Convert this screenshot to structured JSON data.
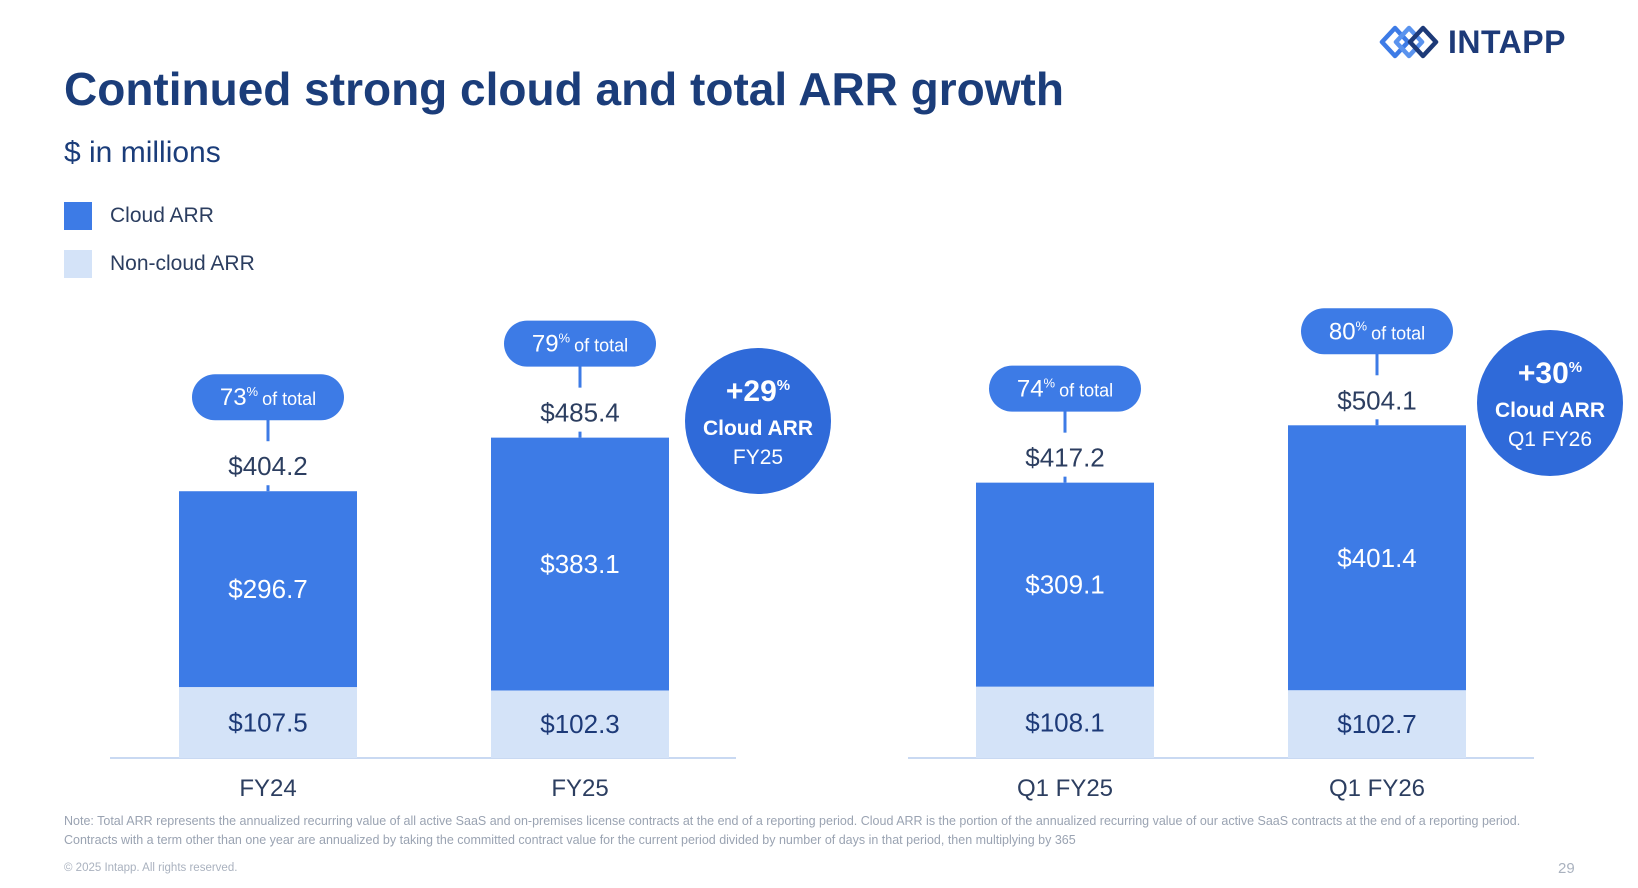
{
  "brand": {
    "logo_text": "INTAPP",
    "icon": "intapp-logo-icon"
  },
  "header": {
    "title": "Continued strong cloud and total ARR growth",
    "subtitle": "$ in millions"
  },
  "legend": [
    {
      "label": "Cloud ARR",
      "color": "#3d7be6"
    },
    {
      "label": "Non-cloud ARR",
      "color": "#d4e3f8"
    }
  ],
  "colors": {
    "cloud": "#3d7be6",
    "noncloud": "#d4e3f8",
    "accent_dark": "#2f6ad9",
    "baseline": "#c9d9f2"
  },
  "chart_data": {
    "type": "bar",
    "stacked": true,
    "categories": [
      "FY24",
      "FY25",
      "Q1 FY25",
      "Q1 FY26"
    ],
    "groups": [
      [
        "FY24",
        "FY25"
      ],
      [
        "Q1 FY25",
        "Q1 FY26"
      ]
    ],
    "series": [
      {
        "name": "Non-cloud ARR",
        "values": [
          107.5,
          102.3,
          108.1,
          102.7
        ],
        "labels": [
          "$107.5",
          "$102.3",
          "$108.1",
          "$102.7"
        ]
      },
      {
        "name": "Cloud ARR",
        "values": [
          296.7,
          383.1,
          309.1,
          401.4
        ],
        "labels": [
          "$296.7",
          "$383.1",
          "$309.1",
          "$401.4"
        ]
      }
    ],
    "totals": [
      404.2,
      485.4,
      417.2,
      504.1
    ],
    "total_labels": [
      "$404.2",
      "$485.4",
      "$417.2",
      "$504.1"
    ],
    "share_pct": [
      "73",
      "79",
      "74",
      "80"
    ],
    "share_sup": "%",
    "share_suffix": "of total",
    "growth_callouts": [
      {
        "pct": "+29",
        "sup": "%",
        "line1": "Cloud ARR",
        "line2": "FY25"
      },
      {
        "pct": "+30",
        "sup": "%",
        "line1": "Cloud ARR",
        "line2": "Q1 FY26"
      }
    ],
    "title": "",
    "xlabel": "",
    "ylabel": "",
    "grid": false
  },
  "footer": {
    "note": "Note: Total ARR represents the annualized recurring value of all active SaaS and on-premises license contracts at the end of a reporting period. Cloud ARR is the portion of the annualized recurring value of our active SaaS contracts at the end of a reporting period. Contracts with a term other than one year are annualized by taking the committed contract value for the current period divided by number of days in that period, then multiplying by 365",
    "copyright": "© 2025 Intapp. All rights reserved.",
    "page_number": "29"
  }
}
